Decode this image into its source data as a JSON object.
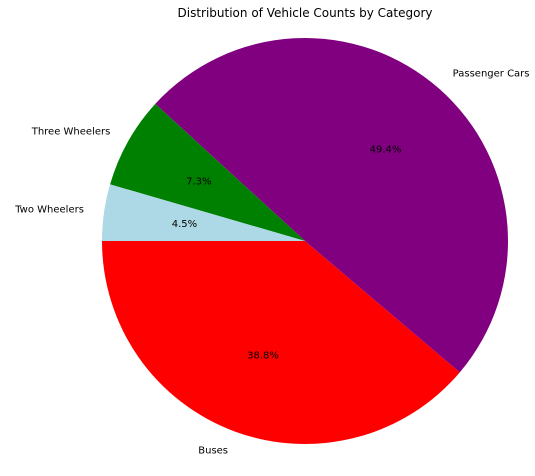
{
  "chart_data": {
    "type": "pie",
    "title": "Distribution of Vehicle Counts by Category",
    "start_angle_deg": 180,
    "direction": "counterclockwise",
    "slices": [
      {
        "label": "Buses",
        "percent": 38.8,
        "pct_text": "38.8%",
        "color": "#ff0000"
      },
      {
        "label": "Passenger Cars",
        "percent": 49.4,
        "pct_text": "49.4%",
        "color": "#800080"
      },
      {
        "label": "Three Wheelers",
        "percent": 7.3,
        "pct_text": "7.3%",
        "color": "#008000"
      },
      {
        "label": "Two Wheelers",
        "percent": 4.5,
        "pct_text": "4.5%",
        "color": "#add8e6"
      }
    ]
  }
}
